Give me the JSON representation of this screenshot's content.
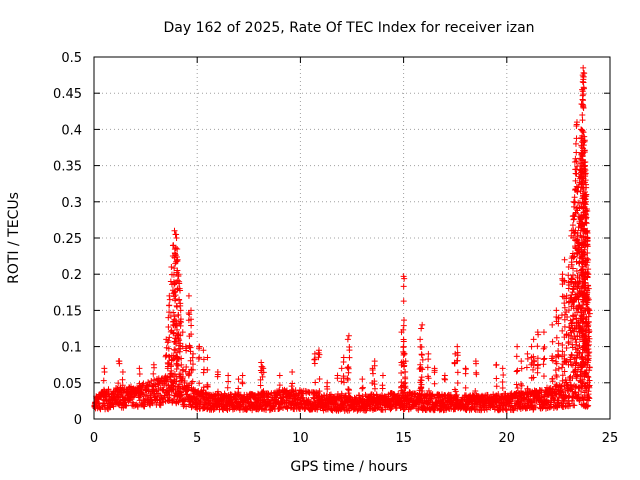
{
  "chart_data": {
    "type": "scatter",
    "title": "Day 162 of 2025, Rate Of TEC Index for receiver izan",
    "xlabel": "GPS time / hours",
    "ylabel": "ROTI / TECUs",
    "xlim": [
      0,
      25
    ],
    "ylim": [
      0,
      0.5
    ],
    "xticks": [
      0,
      5,
      10,
      15,
      20,
      25
    ],
    "xtick_labels": [
      "0",
      "5",
      "10",
      "15",
      "20",
      "25"
    ],
    "yticks": [
      0,
      0.05,
      0.1,
      0.15,
      0.2,
      0.25,
      0.3,
      0.35,
      0.4,
      0.45,
      0.5
    ],
    "ytick_labels": [
      "0",
      "0.05",
      "0.1",
      "0.15",
      "0.2",
      "0.25",
      "0.3",
      "0.35",
      "0.4",
      "0.45",
      "0.5"
    ],
    "grid": true,
    "marker": "+",
    "marker_color": "#ff0000",
    "x_step_hours": 0.03,
    "baseline_profile": {
      "x": [
        0,
        0.5,
        1.5,
        2.5,
        3.0,
        3.5,
        3.9,
        4.3,
        5.0,
        6.0,
        8.0,
        9.5,
        10.5,
        12.0,
        14.0,
        15.0,
        16.0,
        18.0,
        20.0,
        21.5,
        22.5,
        23.0,
        23.5,
        24.0
      ],
      "low": [
        0.012,
        0.013,
        0.015,
        0.017,
        0.018,
        0.02,
        0.022,
        0.018,
        0.013,
        0.012,
        0.012,
        0.013,
        0.012,
        0.011,
        0.012,
        0.013,
        0.012,
        0.012,
        0.012,
        0.013,
        0.015,
        0.017,
        0.02,
        0.015
      ],
      "high": [
        0.03,
        0.04,
        0.045,
        0.05,
        0.055,
        0.06,
        0.065,
        0.055,
        0.04,
        0.035,
        0.035,
        0.042,
        0.038,
        0.032,
        0.035,
        0.038,
        0.035,
        0.033,
        0.035,
        0.04,
        0.048,
        0.06,
        0.075,
        0.045
      ]
    },
    "spikes": [
      {
        "x": 0.5,
        "y": 0.07
      },
      {
        "x": 1.2,
        "y": 0.08
      },
      {
        "x": 1.4,
        "y": 0.065
      },
      {
        "x": 2.2,
        "y": 0.07
      },
      {
        "x": 2.9,
        "y": 0.075
      },
      {
        "x": 3.5,
        "y": 0.11
      },
      {
        "x": 3.6,
        "y": 0.14
      },
      {
        "x": 3.65,
        "y": 0.17
      },
      {
        "x": 3.75,
        "y": 0.21
      },
      {
        "x": 3.85,
        "y": 0.24
      },
      {
        "x": 3.9,
        "y": 0.26
      },
      {
        "x": 3.95,
        "y": 0.255
      },
      {
        "x": 4.0,
        "y": 0.25
      },
      {
        "x": 4.05,
        "y": 0.22
      },
      {
        "x": 4.1,
        "y": 0.2
      },
      {
        "x": 4.15,
        "y": 0.18
      },
      {
        "x": 4.2,
        "y": 0.15
      },
      {
        "x": 4.3,
        "y": 0.12
      },
      {
        "x": 4.45,
        "y": 0.1
      },
      {
        "x": 4.6,
        "y": 0.17
      },
      {
        "x": 4.7,
        "y": 0.15
      },
      {
        "x": 4.8,
        "y": 0.09
      },
      {
        "x": 5.1,
        "y": 0.1
      },
      {
        "x": 5.3,
        "y": 0.095
      },
      {
        "x": 5.5,
        "y": 0.085
      },
      {
        "x": 6.0,
        "y": 0.065
      },
      {
        "x": 6.5,
        "y": 0.06
      },
      {
        "x": 7.0,
        "y": 0.055
      },
      {
        "x": 7.2,
        "y": 0.06
      },
      {
        "x": 8.1,
        "y": 0.078
      },
      {
        "x": 8.15,
        "y": 0.072
      },
      {
        "x": 8.2,
        "y": 0.07
      },
      {
        "x": 9.0,
        "y": 0.06
      },
      {
        "x": 9.6,
        "y": 0.065
      },
      {
        "x": 10.7,
        "y": 0.09
      },
      {
        "x": 10.9,
        "y": 0.095
      },
      {
        "x": 11.3,
        "y": 0.05
      },
      {
        "x": 11.8,
        "y": 0.06
      },
      {
        "x": 12.0,
        "y": 0.07
      },
      {
        "x": 12.1,
        "y": 0.085
      },
      {
        "x": 12.3,
        "y": 0.11
      },
      {
        "x": 12.35,
        "y": 0.115
      },
      {
        "x": 13.0,
        "y": 0.055
      },
      {
        "x": 13.5,
        "y": 0.07
      },
      {
        "x": 13.6,
        "y": 0.08
      },
      {
        "x": 14.0,
        "y": 0.06
      },
      {
        "x": 15.0,
        "y": 0.197
      },
      {
        "x": 14.9,
        "y": 0.12
      },
      {
        "x": 15.0,
        "y": 0.1
      },
      {
        "x": 15.05,
        "y": 0.09
      },
      {
        "x": 15.1,
        "y": 0.08
      },
      {
        "x": 15.8,
        "y": 0.11
      },
      {
        "x": 15.85,
        "y": 0.125
      },
      {
        "x": 15.9,
        "y": 0.13
      },
      {
        "x": 16.2,
        "y": 0.09
      },
      {
        "x": 16.5,
        "y": 0.07
      },
      {
        "x": 17.0,
        "y": 0.06
      },
      {
        "x": 17.5,
        "y": 0.09
      },
      {
        "x": 17.6,
        "y": 0.1
      },
      {
        "x": 18.0,
        "y": 0.07
      },
      {
        "x": 18.5,
        "y": 0.08
      },
      {
        "x": 19.5,
        "y": 0.075
      },
      {
        "x": 19.8,
        "y": 0.07
      },
      {
        "x": 20.5,
        "y": 0.1
      },
      {
        "x": 20.7,
        "y": 0.08
      },
      {
        "x": 21.0,
        "y": 0.09
      },
      {
        "x": 21.2,
        "y": 0.1
      },
      {
        "x": 21.3,
        "y": 0.11
      },
      {
        "x": 21.5,
        "y": 0.12
      },
      {
        "x": 21.8,
        "y": 0.12
      },
      {
        "x": 22.2,
        "y": 0.13
      },
      {
        "x": 22.4,
        "y": 0.15
      },
      {
        "x": 22.5,
        "y": 0.14
      },
      {
        "x": 22.7,
        "y": 0.2
      },
      {
        "x": 22.8,
        "y": 0.22
      },
      {
        "x": 22.9,
        "y": 0.17
      },
      {
        "x": 23.0,
        "y": 0.21
      },
      {
        "x": 23.1,
        "y": 0.19
      },
      {
        "x": 23.15,
        "y": 0.26
      },
      {
        "x": 23.2,
        "y": 0.28
      },
      {
        "x": 23.25,
        "y": 0.3
      },
      {
        "x": 23.3,
        "y": 0.355
      },
      {
        "x": 23.35,
        "y": 0.38
      },
      {
        "x": 23.4,
        "y": 0.41
      },
      {
        "x": 23.45,
        "y": 0.32
      },
      {
        "x": 23.5,
        "y": 0.28
      },
      {
        "x": 23.55,
        "y": 0.36
      },
      {
        "x": 23.6,
        "y": 0.4
      },
      {
        "x": 23.62,
        "y": 0.435
      },
      {
        "x": 23.65,
        "y": 0.455
      },
      {
        "x": 23.68,
        "y": 0.475
      },
      {
        "x": 23.7,
        "y": 0.485
      },
      {
        "x": 23.72,
        "y": 0.478
      },
      {
        "x": 23.75,
        "y": 0.39
      },
      {
        "x": 23.78,
        "y": 0.385
      },
      {
        "x": 23.8,
        "y": 0.355
      },
      {
        "x": 23.82,
        "y": 0.33
      },
      {
        "x": 23.85,
        "y": 0.31
      },
      {
        "x": 23.88,
        "y": 0.29
      },
      {
        "x": 23.9,
        "y": 0.26
      },
      {
        "x": 23.92,
        "y": 0.25
      },
      {
        "x": 23.95,
        "y": 0.2
      },
      {
        "x": 23.97,
        "y": 0.18
      },
      {
        "x": 24.0,
        "y": 0.15
      }
    ]
  }
}
